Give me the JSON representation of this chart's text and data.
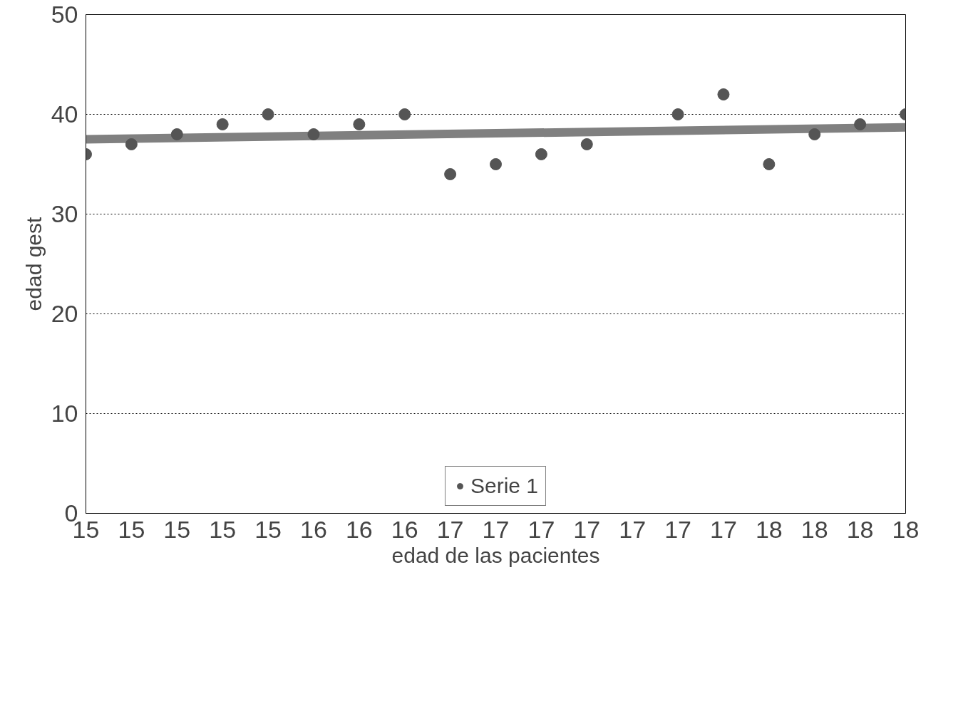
{
  "chart_data": {
    "type": "scatter",
    "xlabel": "edad de las pacientes",
    "ylabel": "edad gest",
    "categories": [
      "15",
      "15",
      "15",
      "15",
      "15",
      "16",
      "16",
      "16",
      "17",
      "17",
      "17",
      "17",
      "17",
      "17",
      "17",
      "18",
      "18",
      "18",
      "18"
    ],
    "series": [
      {
        "name": "Serie 1",
        "color": "#555555",
        "marker": "circle",
        "values": [
          36,
          37,
          38,
          39,
          40,
          38,
          39,
          40,
          34,
          35,
          36,
          37,
          null,
          40,
          42,
          35,
          38,
          39,
          40
        ]
      },
      {
        "type": "line",
        "color": "#808080",
        "values": [
          37.5,
          null,
          null,
          null,
          null,
          null,
          null,
          null,
          null,
          null,
          null,
          null,
          null,
          null,
          null,
          null,
          null,
          null,
          38.7
        ]
      }
    ],
    "ylim": [
      0,
      50
    ],
    "yticks": [
      0,
      10,
      20,
      30,
      40,
      50
    ],
    "grid": "y",
    "legend": "bottom"
  }
}
